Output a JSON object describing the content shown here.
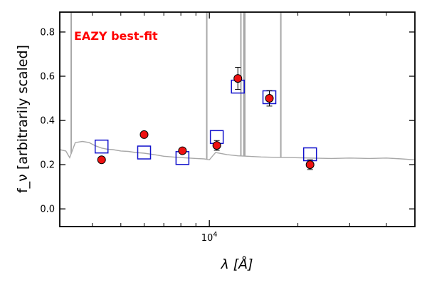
{
  "chart_data": {
    "type": "scatter",
    "xscale": "log",
    "xlim": [
      3100,
      50000
    ],
    "ylim": [
      -0.08,
      0.89
    ],
    "xlabel": "λ [Å]",
    "ylabel": "f_ν [arbitrarily scaled]",
    "annotation": "EAZY best-fit",
    "grid": false,
    "legend": "none",
    "y_ticks": [
      0.0,
      0.2,
      0.4,
      0.6,
      0.8
    ],
    "y_tick_labels": [
      "0.0",
      "0.2",
      "0.4",
      "0.6",
      "0.8"
    ],
    "x_major_ticks": [
      10000
    ],
    "x_tick_labels": [
      {
        "base": "10",
        "exp": "4"
      }
    ],
    "x_minor_ticks": [
      4000,
      5000,
      6000,
      7000,
      8000,
      9000,
      20000,
      30000,
      40000
    ],
    "colors": {
      "observed_fill": "#ee1111",
      "observed_edge": "#000000",
      "model_box": "#1111cc",
      "template": "#a8a8a8",
      "annotation": "#ff0000"
    },
    "observed": [
      {
        "x": 4300,
        "y": 0.222,
        "yerr": 0
      },
      {
        "x": 6000,
        "y": 0.336,
        "yerr": 0
      },
      {
        "x": 8100,
        "y": 0.263,
        "yerr": 0
      },
      {
        "x": 10600,
        "y": 0.287,
        "yerr": 0.022
      },
      {
        "x": 12500,
        "y": 0.59,
        "yerr": 0.05
      },
      {
        "x": 16000,
        "y": 0.5,
        "yerr": 0.035
      },
      {
        "x": 22000,
        "y": 0.2,
        "yerr": 0.022
      }
    ],
    "model": [
      {
        "x": 4300,
        "y": 0.282
      },
      {
        "x": 6000,
        "y": 0.255
      },
      {
        "x": 8100,
        "y": 0.23
      },
      {
        "x": 10600,
        "y": 0.325
      },
      {
        "x": 12500,
        "y": 0.553
      },
      {
        "x": 16000,
        "y": 0.505
      },
      {
        "x": 22000,
        "y": 0.247
      }
    ],
    "template": {
      "continuum": [
        [
          3100,
          0.268
        ],
        [
          3250,
          0.262
        ],
        [
          3350,
          0.232
        ],
        [
          3500,
          0.3
        ],
        [
          3700,
          0.305
        ],
        [
          3900,
          0.3
        ],
        [
          4100,
          0.285
        ],
        [
          4300,
          0.275
        ],
        [
          4500,
          0.27
        ],
        [
          4700,
          0.268
        ],
        [
          5000,
          0.262
        ],
        [
          5300,
          0.26
        ],
        [
          5600,
          0.255
        ],
        [
          6000,
          0.252
        ],
        [
          6500,
          0.245
        ],
        [
          7000,
          0.238
        ],
        [
          7500,
          0.235
        ],
        [
          8000,
          0.232
        ],
        [
          8500,
          0.23
        ],
        [
          9000,
          0.228
        ],
        [
          9600,
          0.226
        ],
        [
          10000,
          0.222
        ],
        [
          10500,
          0.255
        ],
        [
          11500,
          0.245
        ],
        [
          12500,
          0.24
        ],
        [
          13500,
          0.238
        ],
        [
          15000,
          0.235
        ],
        [
          17000,
          0.233
        ],
        [
          19000,
          0.232
        ],
        [
          22000,
          0.23
        ],
        [
          26000,
          0.228
        ],
        [
          30000,
          0.23
        ],
        [
          35000,
          0.228
        ],
        [
          40000,
          0.23
        ],
        [
          45000,
          0.226
        ],
        [
          50000,
          0.222
        ]
      ],
      "emission_lines": [
        {
          "x": 3390,
          "y": 0.89
        },
        {
          "x": 9800,
          "y": 0.89
        },
        {
          "x": 12800,
          "y": 0.89
        },
        {
          "x": 13100,
          "y": 0.89
        },
        {
          "x": 13200,
          "y": 0.89
        },
        {
          "x": 17500,
          "y": 0.89
        }
      ]
    }
  }
}
